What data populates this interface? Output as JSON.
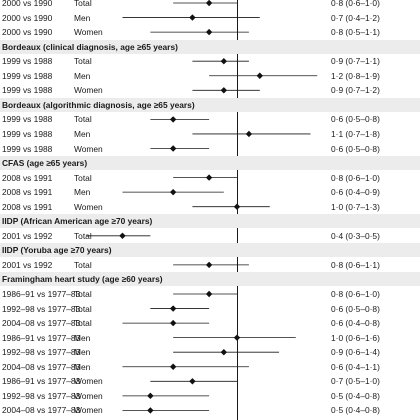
{
  "chart_data": {
    "type": "forest",
    "reference_line": 1.0,
    "x_range": [
      0.25,
      1.6
    ],
    "rows": [
      {
        "kind": "data",
        "comparison": "2000 vs 1990",
        "group": "Total",
        "ratio": 0.8,
        "ci": [
          0.6,
          1.0
        ],
        "label": "0·8 (0·6–1·0)"
      },
      {
        "kind": "data",
        "comparison": "2000 vs 1990",
        "group": "Men",
        "ratio": 0.7,
        "ci": [
          0.4,
          1.2
        ],
        "label": "0·7 (0·4–1·2)"
      },
      {
        "kind": "data",
        "comparison": "2000 vs 1990",
        "group": "Women",
        "ratio": 0.8,
        "ci": [
          0.5,
          1.1
        ],
        "label": "0·8 (0·5–1·1)"
      },
      {
        "kind": "header",
        "title": "Bordeaux (clinical diagnosis, age ≥65 years)"
      },
      {
        "kind": "data",
        "comparison": "1999 vs 1988",
        "group": "Total",
        "ratio": 0.9,
        "ci": [
          0.7,
          1.1
        ],
        "label": "0·9 (0·7–1·1)"
      },
      {
        "kind": "data",
        "comparison": "1999 vs 1988",
        "group": "Men",
        "ratio": 1.2,
        "ci": [
          0.8,
          1.9
        ],
        "label": "1·2 (0·8–1·9)"
      },
      {
        "kind": "data",
        "comparison": "1999 vs 1988",
        "group": "Women",
        "ratio": 0.9,
        "ci": [
          0.7,
          1.2
        ],
        "label": "0·9 (0·7–1·2)"
      },
      {
        "kind": "header",
        "title": "Bordeaux (algorithmic diagnosis, age ≥65 years)"
      },
      {
        "kind": "data",
        "comparison": "1999 vs 1988",
        "group": "Total",
        "ratio": 0.6,
        "ci": [
          0.5,
          0.8
        ],
        "label": "0·6 (0·5–0·8)"
      },
      {
        "kind": "data",
        "comparison": "1999 vs 1988",
        "group": "Men",
        "ratio": 1.1,
        "ci": [
          0.7,
          1.8
        ],
        "label": "1·1 (0·7–1·8)"
      },
      {
        "kind": "data",
        "comparison": "1999 vs 1988",
        "group": "Women",
        "ratio": 0.6,
        "ci": [
          0.5,
          0.8
        ],
        "label": "0·6 (0·5–0·8)"
      },
      {
        "kind": "header",
        "title": "CFAS (age ≥65 years)"
      },
      {
        "kind": "data",
        "comparison": "2008 vs 1991",
        "group": "Total",
        "ratio": 0.8,
        "ci": [
          0.6,
          1.0
        ],
        "label": "0·8 (0·6–1·0)"
      },
      {
        "kind": "data",
        "comparison": "2008 vs 1991",
        "group": "Men",
        "ratio": 0.6,
        "ci": [
          0.4,
          0.9
        ],
        "label": "0·6 (0·4–0·9)"
      },
      {
        "kind": "data",
        "comparison": "2008 vs 1991",
        "group": "Women",
        "ratio": 1.0,
        "ci": [
          0.7,
          1.3
        ],
        "label": "1·0 (0·7–1·3)"
      },
      {
        "kind": "header",
        "title": "IIDP (African American age ≥70 years)"
      },
      {
        "kind": "data",
        "comparison": "2001 vs 1992",
        "group": "Total",
        "ratio": 0.4,
        "ci": [
          0.3,
          0.5
        ],
        "label": "0·4 (0·3–0·5)"
      },
      {
        "kind": "header",
        "title": "IIDP (Yoruba age ≥70 years)"
      },
      {
        "kind": "data",
        "comparison": "2001 vs 1992",
        "group": "Total",
        "ratio": 0.8,
        "ci": [
          0.6,
          1.1
        ],
        "label": "0·8 (0·6–1·1)"
      },
      {
        "kind": "header",
        "title": "Framingham heart study (age ≥60 years)"
      },
      {
        "kind": "data",
        "comparison": "1986–91 vs 1977–83",
        "group": "Total",
        "ratio": 0.8,
        "ci": [
          0.6,
          1.0
        ],
        "label": "0·8 (0·6–1·0)"
      },
      {
        "kind": "data",
        "comparison": "1992–98 vs 1977–83",
        "group": "Total",
        "ratio": 0.6,
        "ci": [
          0.5,
          0.8
        ],
        "label": "0·6 (0·5–0·8)"
      },
      {
        "kind": "data",
        "comparison": "2004–08 vs 1977–83",
        "group": "Total",
        "ratio": 0.6,
        "ci": [
          0.4,
          0.8
        ],
        "label": "0·6 (0·4–0·8)"
      },
      {
        "kind": "data",
        "comparison": "1986–91 vs 1977–83",
        "group": "Men",
        "ratio": 1.0,
        "ci": [
          0.6,
          1.6
        ],
        "label": "1·0 (0·6–1·6)"
      },
      {
        "kind": "data",
        "comparison": "1992–98 vs 1977–83",
        "group": "Men",
        "ratio": 0.9,
        "ci": [
          0.6,
          1.4
        ],
        "label": "0·9 (0·6–1·4)"
      },
      {
        "kind": "data",
        "comparison": "2004–08 vs 1977–83",
        "group": "Men",
        "ratio": 0.6,
        "ci": [
          0.4,
          1.1
        ],
        "label": "0·6 (0·4–1·1)"
      },
      {
        "kind": "data",
        "comparison": "1986–91 vs 1977–83",
        "group": "Women",
        "ratio": 0.7,
        "ci": [
          0.5,
          1.0
        ],
        "label": "0·7 (0·5–1·0)"
      },
      {
        "kind": "data",
        "comparison": "1992–98 vs 1977–83",
        "group": "Women",
        "ratio": 0.5,
        "ci": [
          0.4,
          0.8
        ],
        "label": "0·5 (0·4–0·8)"
      },
      {
        "kind": "data",
        "comparison": "2004–08 vs 1977–83",
        "group": "Women",
        "ratio": 0.5,
        "ci": [
          0.4,
          0.8
        ],
        "label": "0·5 (0·4–0·8)"
      }
    ]
  }
}
